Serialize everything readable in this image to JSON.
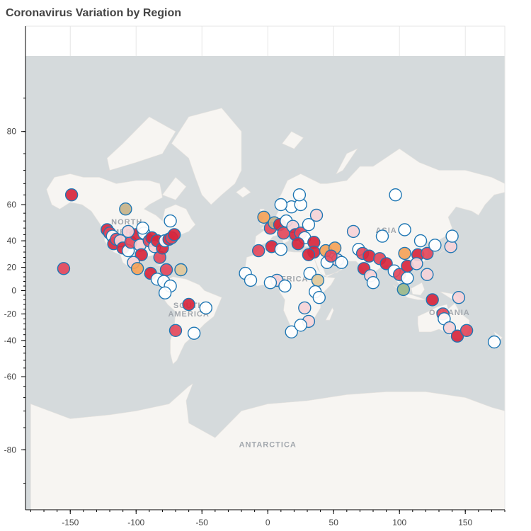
{
  "chart": {
    "title": "Coronavirus Variation by Region"
  },
  "map_labels": {
    "north_america": [
      "NORTH",
      "AMERICA"
    ],
    "south_america": [
      "SOUTH",
      "AMERICA"
    ],
    "africa": "AFRICA",
    "asia": "ASIA",
    "oceania": "OCEANIA",
    "antarctica": "ANTARCTICA"
  },
  "colors": {
    "ocean": "#d5dadc",
    "land": "#f7f5f2",
    "marker_outline": "#1f77b4",
    "palette": [
      "#d7263d",
      "#e3485b",
      "#f4a259",
      "#e0c89a",
      "#c4b28a",
      "#9bb88a",
      "#f5d3d8",
      "#ffffff"
    ]
  },
  "chart_data": {
    "type": "scatter",
    "title": "Coronavirus Variation by Region",
    "xlabel": "",
    "ylabel": "",
    "xlim": [
      -184,
      180
    ],
    "ylim": [
      -86,
      88
    ],
    "y_scale": "web-mercator latitude",
    "xticks": [
      -150,
      -100,
      -50,
      0,
      50,
      100,
      150
    ],
    "yticks": [
      80,
      60,
      40,
      20,
      0,
      -20,
      -40,
      -60,
      -80
    ],
    "grid": true,
    "points": [
      {
        "x": -149,
        "y": 64,
        "c": 0
      },
      {
        "x": -108,
        "y": 58,
        "c": 4
      },
      {
        "x": -155,
        "y": 19,
        "c": 1
      },
      {
        "x": -122,
        "y": 47,
        "c": 0
      },
      {
        "x": -120,
        "y": 45,
        "c": 1
      },
      {
        "x": -118,
        "y": 43,
        "c": 7
      },
      {
        "x": -117,
        "y": 38,
        "c": 0
      },
      {
        "x": -115,
        "y": 41,
        "c": 1
      },
      {
        "x": -112,
        "y": 40,
        "c": 6
      },
      {
        "x": -110,
        "y": 35,
        "c": 0
      },
      {
        "x": -106,
        "y": 33,
        "c": 7
      },
      {
        "x": -104,
        "y": 39,
        "c": 1
      },
      {
        "x": -100,
        "y": 44,
        "c": 0
      },
      {
        "x": -97,
        "y": 37,
        "c": 6
      },
      {
        "x": -96,
        "y": 30,
        "c": 0
      },
      {
        "x": -94,
        "y": 45,
        "c": 7
      },
      {
        "x": -90,
        "y": 40,
        "c": 1
      },
      {
        "x": -88,
        "y": 42,
        "c": 0
      },
      {
        "x": -86,
        "y": 36,
        "c": 6
      },
      {
        "x": -84,
        "y": 40,
        "c": 0
      },
      {
        "x": -82,
        "y": 28,
        "c": 1
      },
      {
        "x": -80,
        "y": 35,
        "c": 0
      },
      {
        "x": -78,
        "y": 40,
        "c": 7
      },
      {
        "x": -75,
        "y": 41,
        "c": 0
      },
      {
        "x": -73,
        "y": 42,
        "c": 1
      },
      {
        "x": -71,
        "y": 44,
        "c": 0
      },
      {
        "x": -74,
        "y": 52,
        "c": 7
      },
      {
        "x": -95,
        "y": 48,
        "c": 7
      },
      {
        "x": -106,
        "y": 46,
        "c": 6
      },
      {
        "x": -102,
        "y": 24,
        "c": 6
      },
      {
        "x": -99,
        "y": 19,
        "c": 2
      },
      {
        "x": -89,
        "y": 15,
        "c": 0
      },
      {
        "x": -84,
        "y": 10,
        "c": 7
      },
      {
        "x": -77,
        "y": 18,
        "c": 1
      },
      {
        "x": -66,
        "y": 18,
        "c": 3
      },
      {
        "x": -79,
        "y": 8,
        "c": 7
      },
      {
        "x": -74,
        "y": 4,
        "c": 7
      },
      {
        "x": -78,
        "y": -2,
        "c": 7
      },
      {
        "x": -60,
        "y": -12,
        "c": 0
      },
      {
        "x": -70,
        "y": -33,
        "c": 1
      },
      {
        "x": -56,
        "y": -35,
        "c": 7
      },
      {
        "x": -47,
        "y": -15,
        "c": 7
      },
      {
        "x": -3,
        "y": 54,
        "c": 2
      },
      {
        "x": 2,
        "y": 48,
        "c": 1
      },
      {
        "x": 5,
        "y": 51,
        "c": 4
      },
      {
        "x": 9,
        "y": 50,
        "c": 0
      },
      {
        "x": 12,
        "y": 45,
        "c": 1
      },
      {
        "x": 14,
        "y": 52,
        "c": 7
      },
      {
        "x": 18,
        "y": 59,
        "c": 7
      },
      {
        "x": 10,
        "y": 60,
        "c": 7
      },
      {
        "x": 25,
        "y": 60,
        "c": 7
      },
      {
        "x": 24,
        "y": 64,
        "c": 7
      },
      {
        "x": 19,
        "y": 49,
        "c": 6
      },
      {
        "x": 21,
        "y": 44,
        "c": 0
      },
      {
        "x": 25,
        "y": 45,
        "c": 1
      },
      {
        "x": 28,
        "y": 42,
        "c": 7
      },
      {
        "x": 23,
        "y": 38,
        "c": 0
      },
      {
        "x": 31,
        "y": 50,
        "c": 7
      },
      {
        "x": 37,
        "y": 55,
        "c": 6
      },
      {
        "x": 35,
        "y": 39,
        "c": 0
      },
      {
        "x": 35,
        "y": 32,
        "c": 0
      },
      {
        "x": 44,
        "y": 33,
        "c": 2
      },
      {
        "x": 51,
        "y": 35,
        "c": 2
      },
      {
        "x": 53,
        "y": 26,
        "c": 6
      },
      {
        "x": 45,
        "y": 24,
        "c": 7
      },
      {
        "x": 48,
        "y": 29,
        "c": 1
      },
      {
        "x": 56,
        "y": 24,
        "c": 7
      },
      {
        "x": 65,
        "y": 46,
        "c": 6
      },
      {
        "x": 69,
        "y": 34,
        "c": 7
      },
      {
        "x": 72,
        "y": 31,
        "c": 1
      },
      {
        "x": 77,
        "y": 29,
        "c": 0
      },
      {
        "x": 73,
        "y": 19,
        "c": 0
      },
      {
        "x": 78,
        "y": 13,
        "c": 6
      },
      {
        "x": 80,
        "y": 7,
        "c": 7
      },
      {
        "x": 85,
        "y": 27,
        "c": 1
      },
      {
        "x": 90,
        "y": 23,
        "c": 0
      },
      {
        "x": 96,
        "y": 17,
        "c": 7
      },
      {
        "x": 100,
        "y": 14,
        "c": 1
      },
      {
        "x": 103,
        "y": 1,
        "c": 5
      },
      {
        "x": 106,
        "y": 11,
        "c": 7
      },
      {
        "x": 106,
        "y": 21,
        "c": 0
      },
      {
        "x": 104,
        "y": 31,
        "c": 2
      },
      {
        "x": 114,
        "y": 30,
        "c": 0
      },
      {
        "x": 116,
        "y": 40,
        "c": 7
      },
      {
        "x": 121,
        "y": 31,
        "c": 1
      },
      {
        "x": 113,
        "y": 23,
        "c": 6
      },
      {
        "x": 121,
        "y": 14,
        "c": 6
      },
      {
        "x": 127,
        "y": 37,
        "c": 7
      },
      {
        "x": 139,
        "y": 36,
        "c": 6
      },
      {
        "x": 140,
        "y": 43,
        "c": 7
      },
      {
        "x": 87,
        "y": 43,
        "c": 7
      },
      {
        "x": 97,
        "y": 64,
        "c": 7
      },
      {
        "x": 104,
        "y": 47,
        "c": 7
      },
      {
        "x": 125,
        "y": -8,
        "c": 0
      },
      {
        "x": 145,
        "y": -6,
        "c": 6
      },
      {
        "x": 133,
        "y": -20,
        "c": 1
      },
      {
        "x": 134,
        "y": -24,
        "c": 7
      },
      {
        "x": 138,
        "y": -31,
        "c": 6
      },
      {
        "x": 144,
        "y": -37,
        "c": 0
      },
      {
        "x": 151,
        "y": -33,
        "c": 1
      },
      {
        "x": 172,
        "y": -41,
        "c": 7
      },
      {
        "x": -17,
        "y": 15,
        "c": 7
      },
      {
        "x": -13,
        "y": 9,
        "c": 7
      },
      {
        "x": -7,
        "y": 33,
        "c": 1
      },
      {
        "x": 3,
        "y": 36,
        "c": 0
      },
      {
        "x": 10,
        "y": 34,
        "c": 7
      },
      {
        "x": 31,
        "y": 30,
        "c": 0
      },
      {
        "x": 32,
        "y": 15,
        "c": 7
      },
      {
        "x": 38,
        "y": 9,
        "c": 3
      },
      {
        "x": 7,
        "y": 9,
        "c": 6
      },
      {
        "x": 2,
        "y": 7,
        "c": 7
      },
      {
        "x": 13,
        "y": 4,
        "c": 7
      },
      {
        "x": 36,
        "y": -1,
        "c": 7
      },
      {
        "x": 39,
        "y": -6,
        "c": 7
      },
      {
        "x": 28,
        "y": -15,
        "c": 6
      },
      {
        "x": 31,
        "y": -26,
        "c": 6
      },
      {
        "x": 18,
        "y": -34,
        "c": 7
      },
      {
        "x": 25,
        "y": -29,
        "c": 7
      }
    ]
  }
}
